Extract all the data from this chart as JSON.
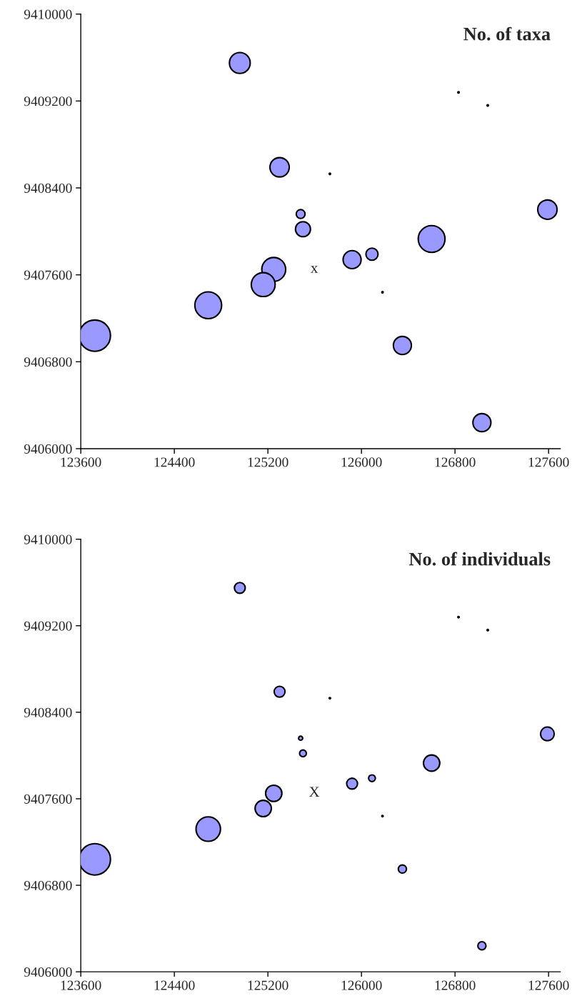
{
  "chart_data": [
    {
      "type": "bubble",
      "title": "No. of taxa",
      "x": [
        124960,
        125300,
        125480,
        125500,
        125250,
        125160,
        124690,
        123720,
        125920,
        126090,
        126600,
        127590,
        126350,
        127030,
        126830,
        127080,
        125730,
        126180
      ],
      "values": [
        9409550,
        9408590,
        9408160,
        9408020,
        9407650,
        9407510,
        9407320,
        9407040,
        9407740,
        9407790,
        9407930,
        9408200,
        9406950,
        9406240,
        9409280,
        9409160,
        9408530,
        9407440
      ],
      "sizes": [
        0.44,
        0.38,
        0.08,
        0.23,
        0.58,
        0.58,
        0.73,
        1,
        0.33,
        0.15,
        0.73,
        0.38,
        0.33,
        0.33,
        0.002,
        0.002,
        0.002,
        0.002
      ],
      "color": "#9999ff",
      "xlim": [
        123600,
        127700
      ],
      "ylim": [
        9406000,
        9410000
      ],
      "xticks": [
        123600,
        124400,
        125200,
        126000,
        126800,
        127600
      ],
      "yticks": [
        9406000,
        9406800,
        9407600,
        9408400,
        9409200,
        9410000
      ],
      "annotations": [
        "x"
      ]
    },
    {
      "type": "bubble",
      "title": "No. of individuals",
      "x": [
        124960,
        125300,
        125480,
        125500,
        125250,
        125160,
        124690,
        123720,
        125920,
        126090,
        126600,
        127590,
        126350,
        127030,
        126830,
        127080,
        125730,
        126180
      ],
      "values": [
        9409550,
        9408590,
        9408160,
        9408020,
        9407650,
        9407510,
        9407320,
        9407040,
        9407740,
        9407790,
        9407930,
        9408200,
        9406950,
        9406240,
        9409280,
        9409160,
        9408530,
        9407440
      ],
      "sizes": [
        0.12,
        0.12,
        0.017,
        0.047,
        0.27,
        0.27,
        0.61,
        1,
        0.12,
        0.047,
        0.27,
        0.19,
        0.068,
        0.068,
        0.002,
        0.002,
        0.002,
        0.002
      ],
      "color": "#9999ff",
      "xlim": [
        123600,
        127700
      ],
      "ylim": [
        9406000,
        9410000
      ],
      "xticks": [
        123600,
        124400,
        125200,
        126000,
        126800,
        127600
      ],
      "yticks": [
        9406000,
        9406800,
        9407600,
        9408400,
        9409200,
        9410000
      ],
      "annotations": [
        "X"
      ]
    }
  ]
}
